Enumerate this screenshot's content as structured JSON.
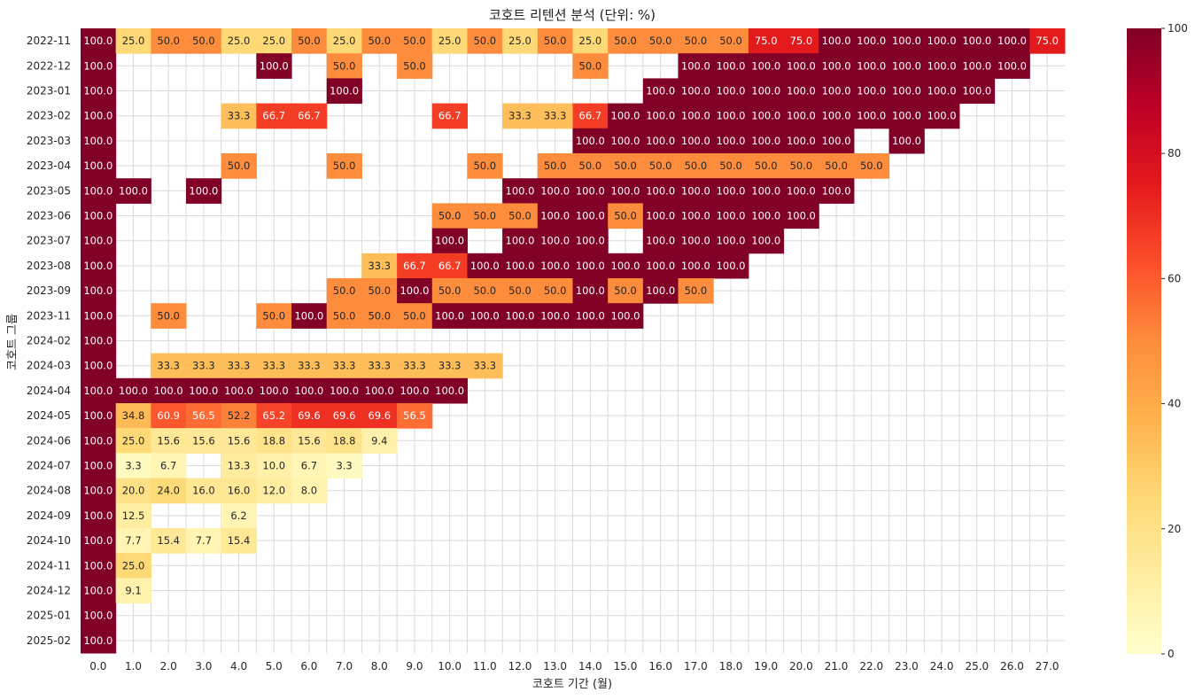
{
  "chart_data": {
    "type": "heatmap",
    "title": "코호트 리텐션 분석 (단위: %)",
    "xlabel": "코호트 기간 (월)",
    "ylabel": "코호트 그룹",
    "x": [
      "0.0",
      "1.0",
      "2.0",
      "3.0",
      "4.0",
      "5.0",
      "6.0",
      "7.0",
      "8.0",
      "9.0",
      "10.0",
      "11.0",
      "12.0",
      "13.0",
      "14.0",
      "15.0",
      "16.0",
      "17.0",
      "18.0",
      "19.0",
      "20.0",
      "21.0",
      "22.0",
      "23.0",
      "24.0",
      "25.0",
      "26.0",
      "27.0"
    ],
    "y": [
      "2022-11",
      "2022-12",
      "2023-01",
      "2023-02",
      "2023-03",
      "2023-04",
      "2023-05",
      "2023-06",
      "2023-07",
      "2023-08",
      "2023-09",
      "2023-11",
      "2024-02",
      "2024-03",
      "2024-04",
      "2024-05",
      "2024-06",
      "2024-07",
      "2024-08",
      "2024-09",
      "2024-10",
      "2024-11",
      "2024-12",
      "2025-01",
      "2025-02"
    ],
    "values": [
      [
        100,
        25,
        50,
        50,
        25,
        25,
        50,
        25,
        50,
        50,
        25,
        50,
        25,
        50,
        25,
        50,
        50,
        50,
        50,
        75,
        75,
        100,
        100,
        100,
        100,
        100,
        100,
        75
      ],
      [
        100,
        null,
        null,
        null,
        null,
        100,
        null,
        50,
        null,
        50,
        null,
        null,
        null,
        null,
        50,
        null,
        null,
        100,
        100,
        100,
        100,
        100,
        100,
        100,
        100,
        100,
        100,
        null
      ],
      [
        100,
        null,
        null,
        null,
        null,
        null,
        null,
        100,
        null,
        null,
        null,
        null,
        null,
        null,
        null,
        null,
        100,
        100,
        100,
        100,
        100,
        100,
        100,
        100,
        100,
        100,
        null,
        null
      ],
      [
        100,
        null,
        null,
        null,
        33.3,
        66.7,
        66.7,
        null,
        null,
        null,
        66.7,
        null,
        33.3,
        33.3,
        66.7,
        100,
        100,
        100,
        100,
        100,
        100,
        100,
        100,
        100,
        100,
        null,
        null,
        null
      ],
      [
        100,
        null,
        null,
        null,
        null,
        null,
        null,
        null,
        null,
        null,
        null,
        null,
        null,
        null,
        100,
        100,
        100,
        100,
        100,
        100,
        100,
        100,
        null,
        100,
        null,
        null,
        null,
        null
      ],
      [
        100,
        null,
        null,
        null,
        50,
        null,
        null,
        50,
        null,
        null,
        null,
        50,
        null,
        50,
        50,
        50,
        50,
        50,
        50,
        50,
        50,
        50,
        50,
        null,
        null,
        null,
        null,
        null
      ],
      [
        100,
        100,
        null,
        100,
        null,
        null,
        null,
        null,
        null,
        null,
        null,
        null,
        100,
        100,
        100,
        100,
        100,
        100,
        100,
        100,
        100,
        100,
        null,
        null,
        null,
        null,
        null,
        null
      ],
      [
        100,
        null,
        null,
        null,
        null,
        null,
        null,
        null,
        null,
        null,
        50,
        50,
        50,
        100,
        100,
        50,
        100,
        100,
        100,
        100,
        100,
        null,
        null,
        null,
        null,
        null,
        null,
        null
      ],
      [
        100,
        null,
        null,
        null,
        null,
        null,
        null,
        null,
        null,
        null,
        100,
        null,
        100,
        100,
        100,
        null,
        100,
        100,
        100,
        100,
        null,
        null,
        null,
        null,
        null,
        null,
        null,
        null
      ],
      [
        100,
        null,
        null,
        null,
        null,
        null,
        null,
        null,
        33.3,
        66.7,
        66.7,
        100,
        100,
        100,
        100,
        100,
        100,
        100,
        100,
        null,
        null,
        null,
        null,
        null,
        null,
        null,
        null,
        null
      ],
      [
        100,
        null,
        null,
        null,
        null,
        null,
        null,
        50,
        50,
        100,
        50,
        50,
        50,
        50,
        100,
        50,
        100,
        50,
        null,
        null,
        null,
        null,
        null,
        null,
        null,
        null,
        null,
        null
      ],
      [
        100,
        null,
        50,
        null,
        null,
        50,
        100,
        50,
        50,
        50,
        100,
        100,
        100,
        100,
        100,
        100,
        null,
        null,
        null,
        null,
        null,
        null,
        null,
        null,
        null,
        null,
        null,
        null
      ],
      [
        100,
        null,
        null,
        null,
        null,
        null,
        null,
        null,
        null,
        null,
        null,
        null,
        null,
        null,
        null,
        null,
        null,
        null,
        null,
        null,
        null,
        null,
        null,
        null,
        null,
        null,
        null,
        null
      ],
      [
        100,
        null,
        33.3,
        33.3,
        33.3,
        33.3,
        33.3,
        33.3,
        33.3,
        33.3,
        33.3,
        33.3,
        null,
        null,
        null,
        null,
        null,
        null,
        null,
        null,
        null,
        null,
        null,
        null,
        null,
        null,
        null,
        null
      ],
      [
        100,
        100,
        100,
        100,
        100,
        100,
        100,
        100,
        100,
        100,
        100,
        null,
        null,
        null,
        null,
        null,
        null,
        null,
        null,
        null,
        null,
        null,
        null,
        null,
        null,
        null,
        null,
        null
      ],
      [
        100,
        34.8,
        60.9,
        56.5,
        52.2,
        65.2,
        69.6,
        69.6,
        69.6,
        56.5,
        null,
        null,
        null,
        null,
        null,
        null,
        null,
        null,
        null,
        null,
        null,
        null,
        null,
        null,
        null,
        null,
        null,
        null
      ],
      [
        100,
        25,
        15.6,
        15.6,
        15.6,
        18.8,
        15.6,
        18.8,
        9.4,
        null,
        null,
        null,
        null,
        null,
        null,
        null,
        null,
        null,
        null,
        null,
        null,
        null,
        null,
        null,
        null,
        null,
        null,
        null
      ],
      [
        100,
        3.3,
        6.7,
        null,
        13.3,
        10,
        6.7,
        3.3,
        null,
        null,
        null,
        null,
        null,
        null,
        null,
        null,
        null,
        null,
        null,
        null,
        null,
        null,
        null,
        null,
        null,
        null,
        null,
        null
      ],
      [
        100,
        20,
        24,
        16,
        16,
        12,
        8,
        null,
        null,
        null,
        null,
        null,
        null,
        null,
        null,
        null,
        null,
        null,
        null,
        null,
        null,
        null,
        null,
        null,
        null,
        null,
        null,
        null
      ],
      [
        100,
        12.5,
        null,
        null,
        6.2,
        null,
        null,
        null,
        null,
        null,
        null,
        null,
        null,
        null,
        null,
        null,
        null,
        null,
        null,
        null,
        null,
        null,
        null,
        null,
        null,
        null,
        null,
        null
      ],
      [
        100,
        7.7,
        15.4,
        7.7,
        15.4,
        null,
        null,
        null,
        null,
        null,
        null,
        null,
        null,
        null,
        null,
        null,
        null,
        null,
        null,
        null,
        null,
        null,
        null,
        null,
        null,
        null,
        null,
        null
      ],
      [
        100,
        25,
        null,
        null,
        null,
        null,
        null,
        null,
        null,
        null,
        null,
        null,
        null,
        null,
        null,
        null,
        null,
        null,
        null,
        null,
        null,
        null,
        null,
        null,
        null,
        null,
        null,
        null
      ],
      [
        100,
        9.1,
        null,
        null,
        null,
        null,
        null,
        null,
        null,
        null,
        null,
        null,
        null,
        null,
        null,
        null,
        null,
        null,
        null,
        null,
        null,
        null,
        null,
        null,
        null,
        null,
        null,
        null
      ],
      [
        100,
        null,
        null,
        null,
        null,
        null,
        null,
        null,
        null,
        null,
        null,
        null,
        null,
        null,
        null,
        null,
        null,
        null,
        null,
        null,
        null,
        null,
        null,
        null,
        null,
        null,
        null,
        null
      ],
      [
        100,
        null,
        null,
        null,
        null,
        null,
        null,
        null,
        null,
        null,
        null,
        null,
        null,
        null,
        null,
        null,
        null,
        null,
        null,
        null,
        null,
        null,
        null,
        null,
        null,
        null,
        null,
        null
      ]
    ],
    "colormap": "YlOrRd",
    "vmin": 0,
    "vmax": 100,
    "colorbar_ticks": [
      0,
      20,
      40,
      60,
      80,
      100
    ],
    "grid": true,
    "value_format": "0.0"
  }
}
